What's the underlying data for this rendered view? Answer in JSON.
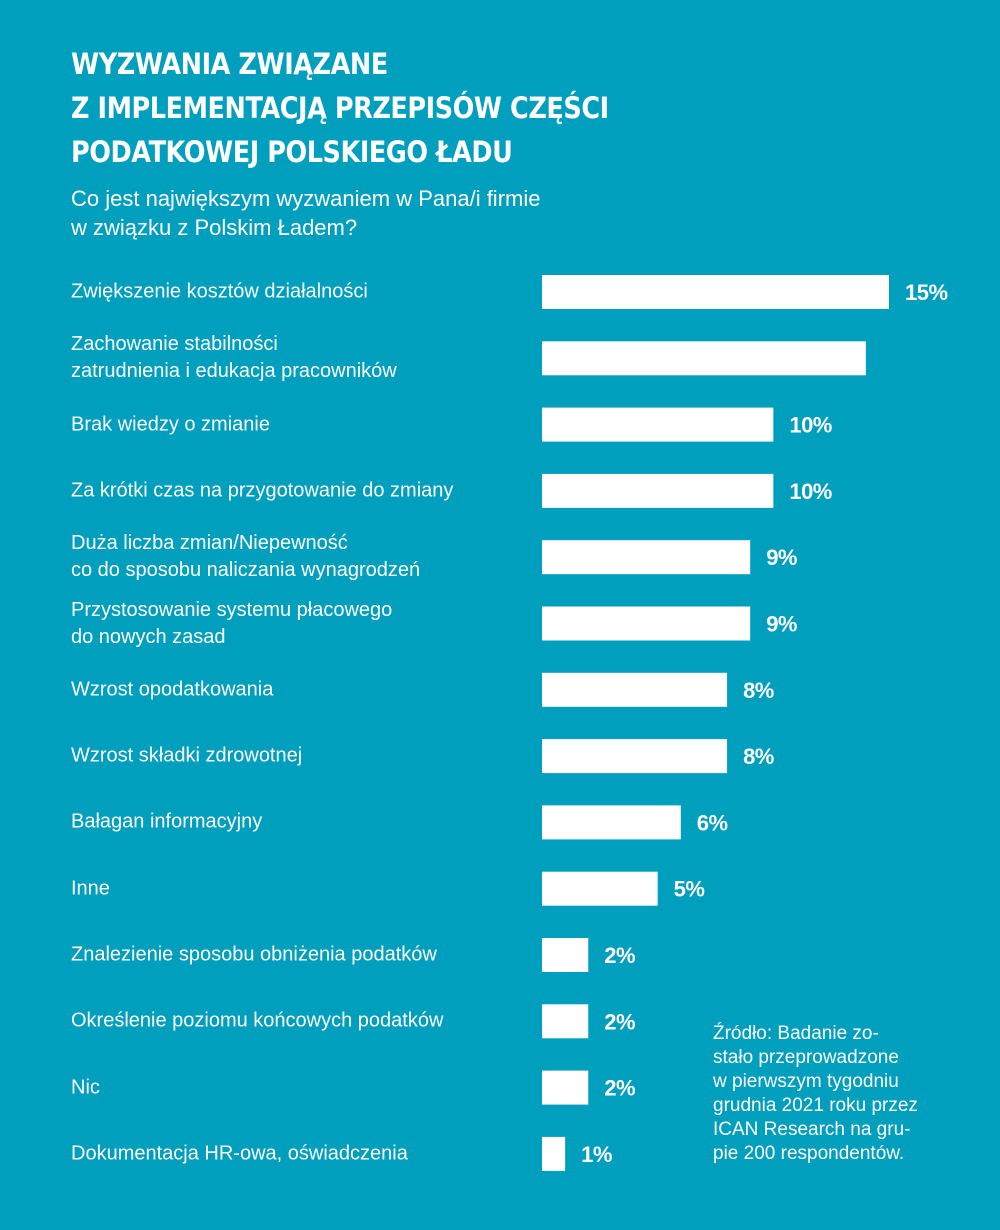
{
  "chart_data": {
    "type": "bar",
    "orientation": "horizontal",
    "title": [
      "WYZWANIA ZWIĄZANE",
      "Z IMPLEMENTACJĄ PRZEPISÓW CZĘŚCI",
      "PODATKOWEJ POLSKIEGO ŁADU"
    ],
    "subtitle": [
      "Co jest największym wyzwaniem w Pana/i firmie",
      "w związku z Polskim Ładem?"
    ],
    "xlabel": "",
    "ylabel": "",
    "xlim": [
      0,
      15
    ],
    "grid": false,
    "unit": "%",
    "categories": [
      [
        "Zwiększenie kosztów działalności"
      ],
      [
        "Zachowanie stabilności",
        "zatrudnienia i edukacja pracowników"
      ],
      [
        "Brak wiedzy o zmianie"
      ],
      [
        "Za krótki czas na przygotowanie do zmiany"
      ],
      [
        "Duża liczba zmian/Niepewność",
        "co do sposobu naliczania wynagrodzeń"
      ],
      [
        "Przystosowanie systemu płacowego",
        "do nowych zasad"
      ],
      [
        "Wzrost opodatkowania"
      ],
      [
        "Wzrost składki zdrowotnej"
      ],
      [
        "Bałagan informacyjny"
      ],
      [
        "Inne"
      ],
      [
        "Znalezienie sposobu obniżenia podatków"
      ],
      [
        "Określenie poziomu końcowych podatków"
      ],
      [
        "Nic"
      ],
      [
        "Dokumentacja HR-owa, oświadczenia"
      ]
    ],
    "values": [
      15,
      14,
      10,
      10,
      9,
      9,
      8,
      8,
      6,
      5,
      2,
      2,
      2,
      1
    ],
    "data_labels": [
      "15%",
      null,
      "10%",
      "10%",
      "9%",
      "9%",
      "8%",
      "8%",
      "6%",
      "5%",
      "2%",
      "2%",
      "2%",
      "1%"
    ],
    "colors": {
      "background": "#009fbd",
      "bar": "#ffffff",
      "text": "#ffffff"
    }
  },
  "source": [
    "Źródło: Badanie zo-",
    "stało przeprowadzone",
    "w pierwszym tygodniu",
    "grudnia 2021 roku przez",
    "ICAN Research na gru-",
    "pie 200 respondentów."
  ]
}
